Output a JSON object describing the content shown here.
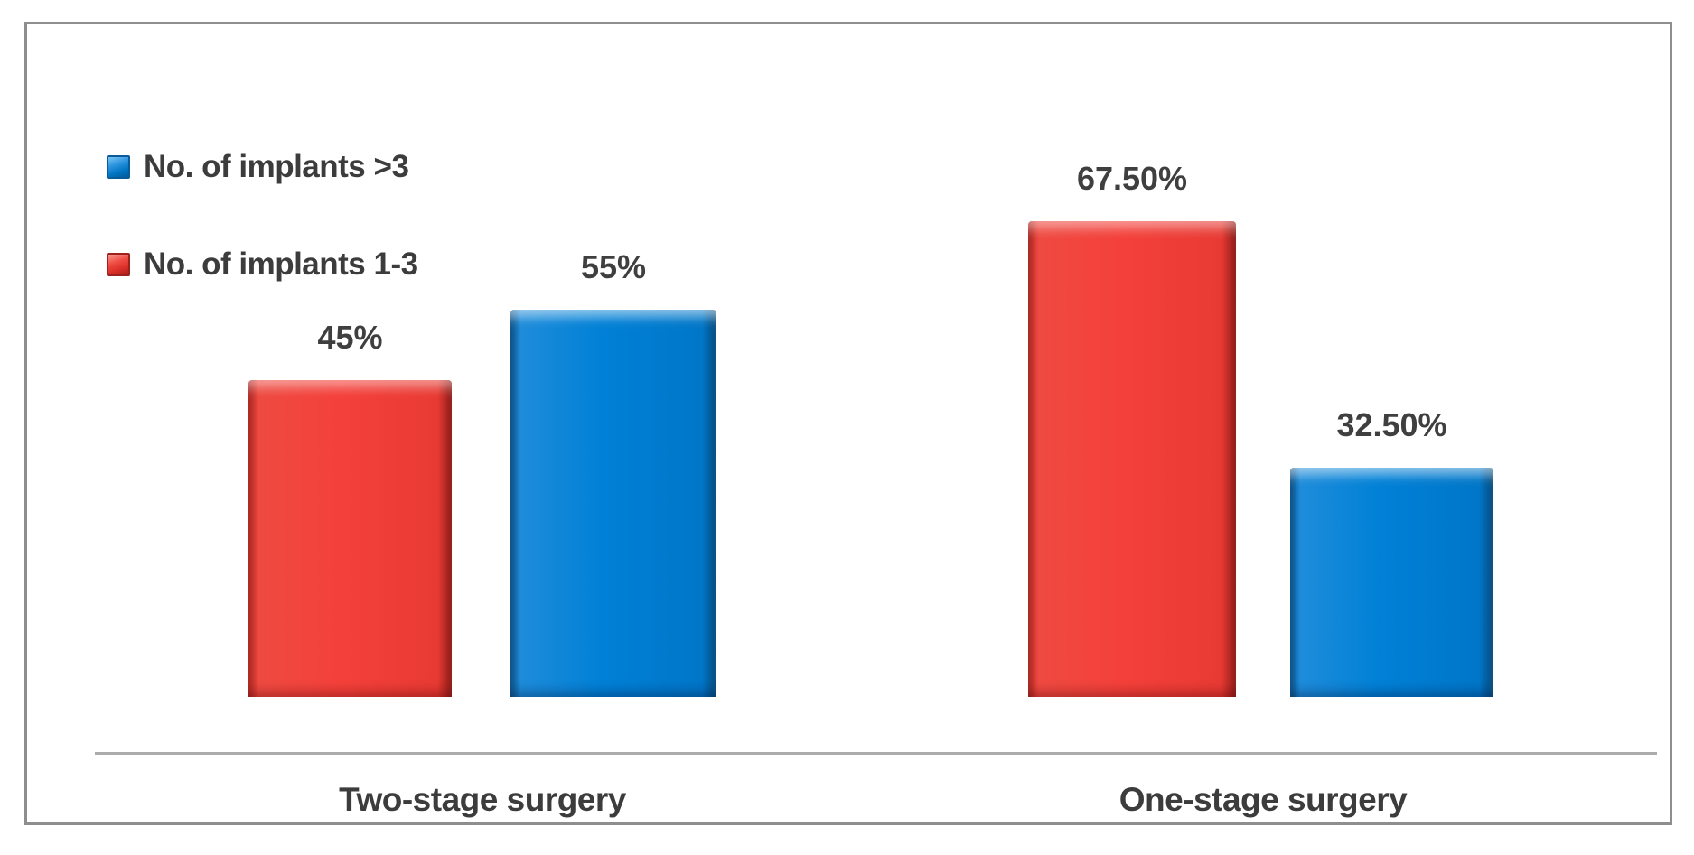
{
  "chart_data": {
    "type": "bar",
    "categories": [
      "Two-stage surgery",
      "One-stage surgery"
    ],
    "series": [
      {
        "name": "No. of implants 1-3",
        "color": "#f4403a",
        "values": [
          45,
          67.5
        ],
        "labels": [
          "45%",
          "67.50%"
        ]
      },
      {
        "name": "No. of implants >3",
        "color": "#0080d6",
        "values": [
          55,
          32.5
        ],
        "labels": [
          "55%",
          "32.50%"
        ]
      }
    ],
    "ylim": [
      0,
      75
    ],
    "grid": false,
    "legend_position": "top-left",
    "title": "",
    "xlabel": "",
    "ylabel": ""
  },
  "legend": {
    "items": [
      {
        "label": "No. of implants >3",
        "color": "#0080d6"
      },
      {
        "label": "No. of implants 1-3",
        "color": "#f4403a"
      }
    ]
  },
  "colors": {
    "red": "#f4403a",
    "blue": "#0080d6",
    "axis_line": "#ababab",
    "frame_border": "#8e8e8e",
    "text": "#3c3c3c"
  }
}
